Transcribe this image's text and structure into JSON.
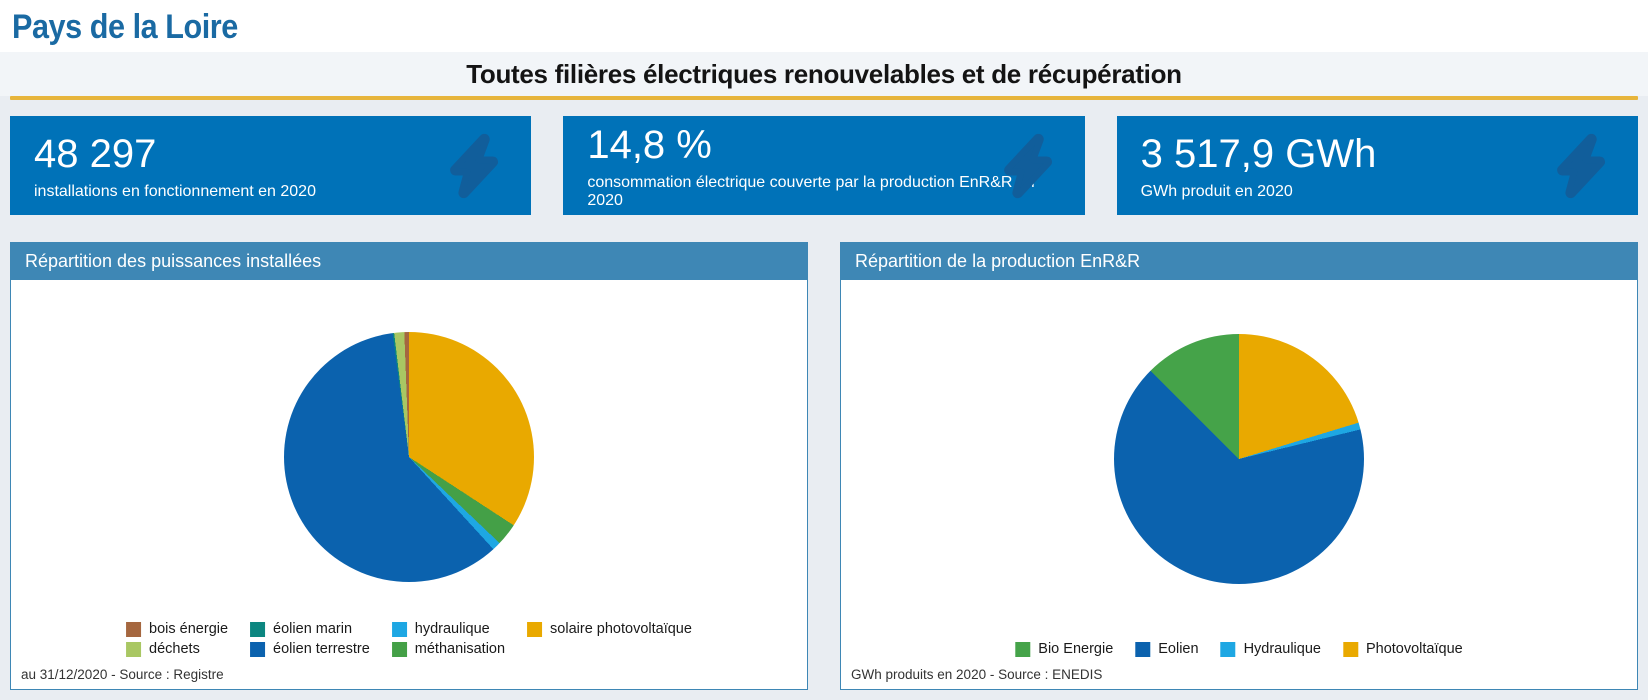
{
  "header": {
    "region": "Pays de la Loire",
    "title": "Toutes filières électriques renouvelables et de récupération"
  },
  "colors": {
    "accent_rule": "#e7b53c",
    "kpi_card_bg": "#0072b8",
    "kpi_icon": "#115e9b",
    "panel_header_bg": "#3e87b5",
    "region_title": "#1a6aa3",
    "page_bg": "#e9edf2"
  },
  "kpi_cards": [
    {
      "value": "48 297",
      "label": "installations en fonctionnement en 2020",
      "icon": "lightning-icon"
    },
    {
      "value": "14,8 %",
      "label": "consommation électrique couverte par la production EnR&R en 2020",
      "icon": "lightning-icon"
    },
    {
      "value": "3 517,9 GWh",
      "label": "GWh produit en 2020",
      "icon": "lightning-icon"
    }
  ],
  "panels": [
    {
      "title": "Répartition des puissances installées",
      "footer": "au 31/12/2020 - Source : Registre"
    },
    {
      "title": "Répartition de la production EnR&R",
      "footer": "GWh produits en 2020 - Source : ENEDIS"
    }
  ],
  "chart_data": [
    {
      "type": "pie",
      "title": "Répartition des puissances installées",
      "unit": "percent share of installed capacity (estimated from pie angles)",
      "source_note": "au 31/12/2020 - Source : Registre",
      "slices": [
        {
          "label": "solaire photovoltaïque",
          "value": 34.2,
          "color": "#e9a900"
        },
        {
          "label": "méthanisation",
          "value": 2.9,
          "color": "#44a047"
        },
        {
          "label": "hydraulique",
          "value": 1.1,
          "color": "#1ea7e3"
        },
        {
          "label": "éolien terrestre",
          "value": 59.7,
          "color": "#0b62ae"
        },
        {
          "label": "éolien marin",
          "value": 0.2,
          "color": "#0c8680"
        },
        {
          "label": "déchets",
          "value": 1.3,
          "color": "#a9c763"
        },
        {
          "label": "bois énergie",
          "value": 0.6,
          "color": "#a5673f"
        }
      ],
      "legend_order": [
        "bois énergie",
        "éolien marin",
        "hydraulique",
        "solaire photovoltaïque",
        "déchets",
        "éolien terrestre",
        "méthanisation"
      ],
      "legend_columns": 4,
      "legend_position": "bottom"
    },
    {
      "type": "pie",
      "title": "Répartition de la production EnR&R",
      "unit": "percent share of GWh produced in 2020 (estimated from pie angles)",
      "source_note": "GWh produits en 2020 - Source : ENEDIS",
      "slices": [
        {
          "label": "Photovoltaïque",
          "value": 20.3,
          "color": "#e9a900"
        },
        {
          "label": "Hydraulique",
          "value": 0.9,
          "color": "#1ea7e3"
        },
        {
          "label": "Eolien",
          "value": 66.3,
          "color": "#0b62ae"
        },
        {
          "label": "Bio Energie",
          "value": 12.5,
          "color": "#45a349"
        }
      ],
      "legend_order": [
        "Bio Energie",
        "Eolien",
        "Hydraulique",
        "Photovoltaïque"
      ],
      "legend_columns": 4,
      "legend_position": "bottom"
    }
  ]
}
